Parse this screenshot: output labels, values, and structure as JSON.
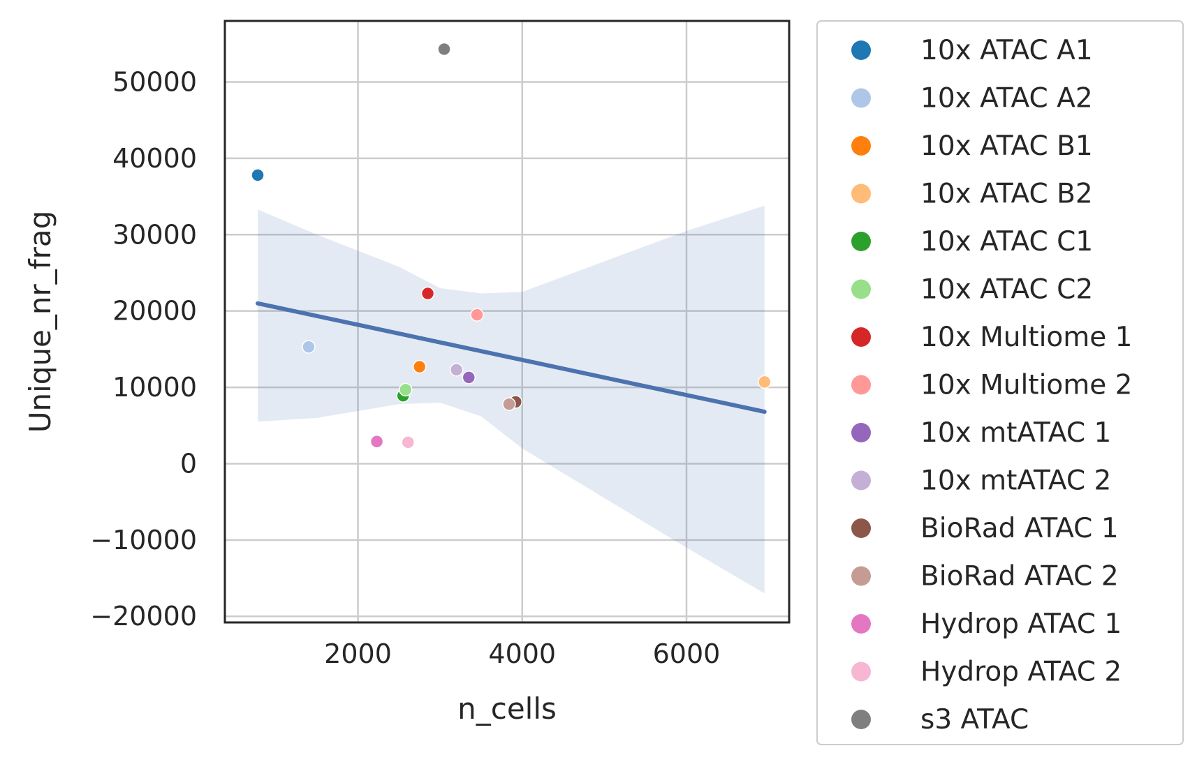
{
  "chart_data": {
    "type": "scatter",
    "xlabel": "n_cells",
    "ylabel": "Unique_nr_frag",
    "xlim": [
      380,
      7250
    ],
    "ylim": [
      -20800,
      58000
    ],
    "xticks": [
      2000,
      4000,
      6000
    ],
    "yticks": [
      -20000,
      -10000,
      0,
      10000,
      20000,
      30000,
      40000,
      50000
    ],
    "grid": true,
    "legend_placement": "outside-right",
    "points": [
      {
        "name": "10x ATAC A1",
        "x": 780,
        "y": 37800,
        "color": "#1f77b4"
      },
      {
        "name": "10x ATAC A2",
        "x": 1400,
        "y": 15300,
        "color": "#aec7e8"
      },
      {
        "name": "10x ATAC B1",
        "x": 2750,
        "y": 12700,
        "color": "#ff7f0e"
      },
      {
        "name": "10x ATAC B2",
        "x": 6950,
        "y": 10700,
        "color": "#ffbb78"
      },
      {
        "name": "10x ATAC C1",
        "x": 2550,
        "y": 8900,
        "color": "#2ca02c"
      },
      {
        "name": "10x ATAC C2",
        "x": 2580,
        "y": 9700,
        "color": "#98df8a"
      },
      {
        "name": "10x Multiome 1",
        "x": 2850,
        "y": 22300,
        "color": "#d62728"
      },
      {
        "name": "10x Multiome 2",
        "x": 3450,
        "y": 19500,
        "color": "#ff9896"
      },
      {
        "name": "10x mtATAC 1",
        "x": 3350,
        "y": 11300,
        "color": "#9467bd"
      },
      {
        "name": "10x mtATAC 2",
        "x": 3200,
        "y": 12300,
        "color": "#c5b0d5"
      },
      {
        "name": "BioRad ATAC 1",
        "x": 3920,
        "y": 8100,
        "color": "#8c564b"
      },
      {
        "name": "BioRad ATAC 2",
        "x": 3840,
        "y": 7800,
        "color": "#c49c94"
      },
      {
        "name": "Hydrop ATAC 1",
        "x": 2230,
        "y": 2900,
        "color": "#e377c2"
      },
      {
        "name": "Hydrop ATAC 2",
        "x": 2610,
        "y": 2800,
        "color": "#f7b6d2"
      },
      {
        "name": "s3 ATAC",
        "x": 3050,
        "y": 54300,
        "color": "#7f7f7f"
      }
    ],
    "regression": {
      "color": "#4c72b0",
      "band_color": "#4c72b0",
      "line": [
        [
          780,
          21000
        ],
        [
          6950,
          6800
        ]
      ],
      "ci_upper": [
        [
          780,
          33300
        ],
        [
          1500,
          30000
        ],
        [
          2500,
          25800
        ],
        [
          3000,
          23000
        ],
        [
          3500,
          22300
        ],
        [
          4000,
          22500
        ],
        [
          5000,
          26500
        ],
        [
          6000,
          30500
        ],
        [
          6950,
          33800
        ]
      ],
      "ci_lower": [
        [
          780,
          5500
        ],
        [
          1500,
          6000
        ],
        [
          2500,
          7800
        ],
        [
          3000,
          8000
        ],
        [
          3500,
          6200
        ],
        [
          4000,
          2000
        ],
        [
          5000,
          -4500
        ],
        [
          6000,
          -11000
        ],
        [
          6950,
          -17000
        ]
      ]
    }
  }
}
